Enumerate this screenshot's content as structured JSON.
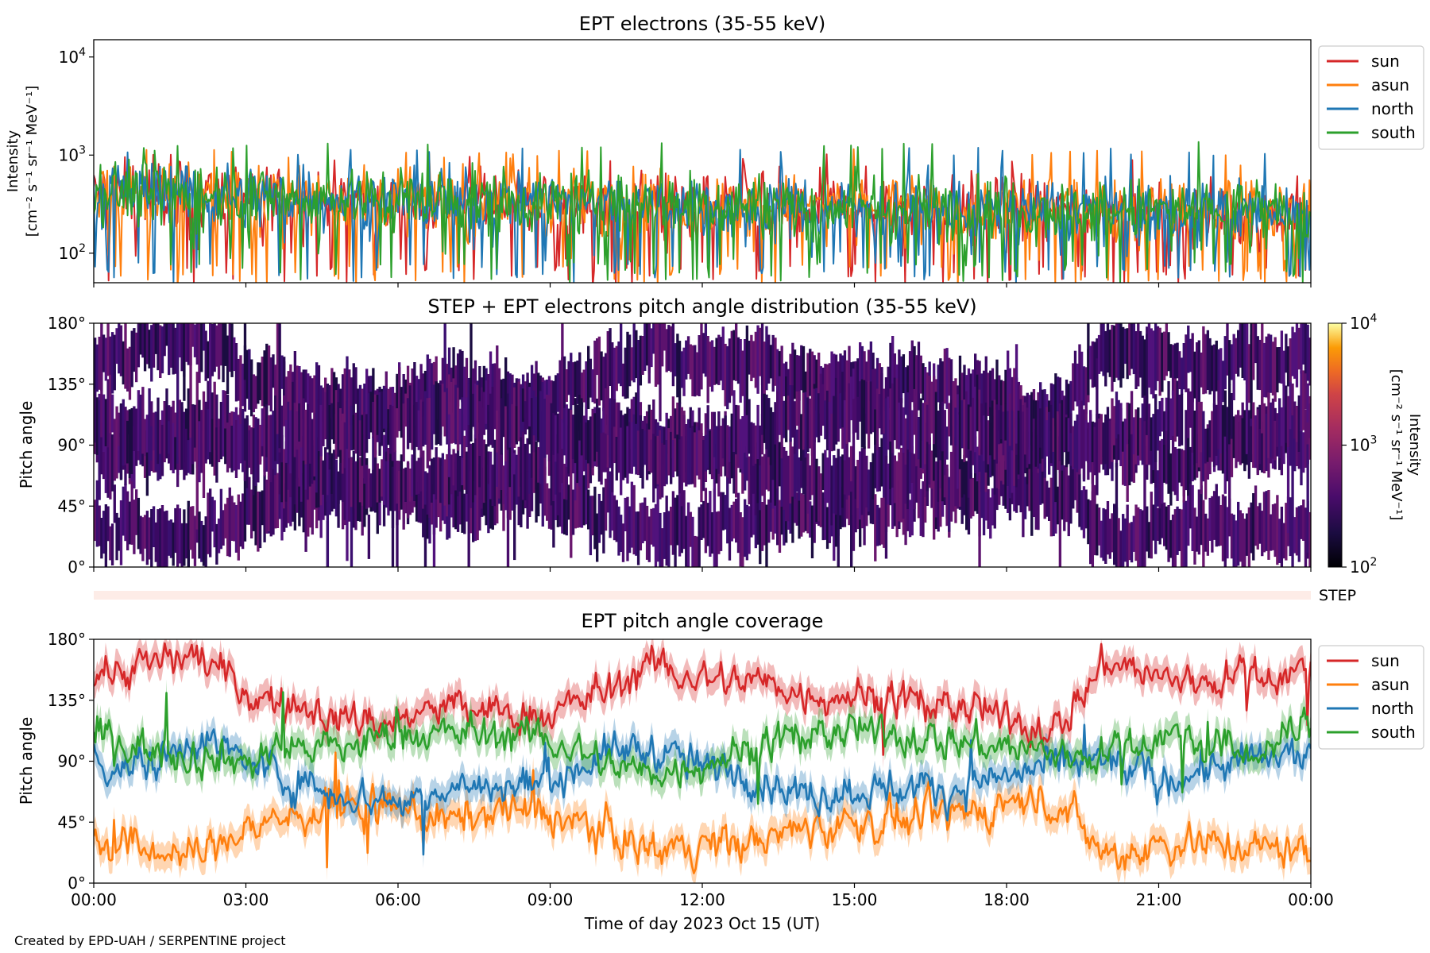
{
  "footer": {
    "credit": "Created by EPD-UAH / SERPENTINE project"
  },
  "chart_data": [
    {
      "type": "line",
      "title": "EPT electrons (35-55 keV)",
      "ylabel_line1": "Intensity",
      "ylabel_line2": "[cm⁻² s⁻¹ sr⁻¹ MeV⁻¹]",
      "yscale": "log",
      "ylim": [
        50,
        15000
      ],
      "yticks": [
        {
          "value": 100,
          "base": "10",
          "exp": "2"
        },
        {
          "value": 1000,
          "base": "10",
          "exp": "3"
        },
        {
          "value": 10000,
          "base": "10",
          "exp": "4"
        }
      ],
      "xlim_hours": [
        0,
        24
      ],
      "legend_position": "right",
      "series": [
        {
          "name": "sun",
          "color": "#d62728",
          "level_by_hour": [
            430,
            400,
            420,
            360,
            380,
            350,
            360,
            330,
            370,
            320,
            330,
            340,
            310,
            320,
            300,
            310,
            290,
            300,
            280,
            270,
            280,
            270,
            260,
            270,
            260
          ],
          "min_spike": 50,
          "max_spike": 1000
        },
        {
          "name": "asun",
          "color": "#ff7f0e",
          "level_by_hour": [
            460,
            440,
            430,
            380,
            390,
            370,
            360,
            350,
            370,
            340,
            330,
            340,
            320,
            310,
            300,
            300,
            300,
            290,
            290,
            280,
            290,
            280,
            270,
            280,
            270
          ],
          "min_spike": 50,
          "max_spike": 1100
        },
        {
          "name": "north",
          "color": "#1f77b4",
          "level_by_hour": [
            450,
            420,
            430,
            370,
            380,
            360,
            350,
            340,
            360,
            330,
            320,
            330,
            310,
            300,
            300,
            300,
            290,
            280,
            280,
            280,
            270,
            270,
            260,
            270,
            260
          ],
          "min_spike": 55,
          "max_spike": 1150
        },
        {
          "name": "south",
          "color": "#2ca02c",
          "level_by_hour": [
            440,
            430,
            420,
            380,
            370,
            360,
            360,
            340,
            350,
            330,
            330,
            330,
            320,
            310,
            310,
            300,
            290,
            290,
            280,
            280,
            280,
            270,
            270,
            270,
            260
          ],
          "min_spike": 55,
          "max_spike": 1300
        }
      ]
    },
    {
      "type": "heatmap",
      "title": "STEP + EPT electrons pitch angle distribution (35-55 keV)",
      "ylabel": "Pitch angle",
      "ylim": [
        0,
        180
      ],
      "yticks": [
        "0°",
        "45°",
        "90°",
        "135°",
        "180°"
      ],
      "xlim_hours": [
        0,
        24
      ],
      "colorbar": {
        "label_line1": "Intensity",
        "label_line2": "[cm⁻² s⁻¹ sr⁻¹ MeV⁻¹]",
        "scale": "log",
        "range": [
          100,
          10000
        ],
        "ticks": [
          {
            "value": 100,
            "base": "10",
            "exp": "2"
          },
          {
            "value": 1000,
            "base": "10",
            "exp": "3"
          },
          {
            "value": 10000,
            "base": "10",
            "exp": "4"
          }
        ],
        "colormap": "inferno"
      },
      "dominant_intensity": 300,
      "description_of_gaps": "uncovered pitch angles shown white"
    },
    {
      "type": "band",
      "label": "STEP",
      "color": "#fdece7",
      "xlim_hours": [
        0,
        24
      ]
    },
    {
      "type": "line",
      "title": "EPT pitch angle coverage",
      "ylabel": "Pitch angle",
      "ylim": [
        0,
        180
      ],
      "yticks": [
        "0°",
        "45°",
        "90°",
        "135°",
        "180°"
      ],
      "xlabel": "Time of day 2023 Oct 15 (UT)",
      "xticks": [
        "00:00",
        "03:00",
        "06:00",
        "09:00",
        "12:00",
        "15:00",
        "18:00",
        "21:00",
        "00:00"
      ],
      "xlim_hours": [
        0,
        24
      ],
      "legend_position": "right",
      "band_halfwidth_deg": 10,
      "hours": [
        0,
        1,
        2,
        3,
        4,
        5,
        6,
        7,
        8,
        9,
        10,
        11,
        12,
        13,
        14,
        15,
        16,
        17,
        18,
        19,
        20,
        21,
        22,
        23,
        24
      ],
      "series": [
        {
          "name": "sun",
          "color": "#d62728",
          "values": [
            155,
            160,
            170,
            140,
            130,
            120,
            120,
            130,
            125,
            125,
            140,
            160,
            150,
            150,
            140,
            140,
            135,
            130,
            120,
            115,
            165,
            150,
            150,
            155,
            155
          ]
        },
        {
          "name": "asun",
          "color": "#ff7f0e",
          "values": [
            30,
            25,
            20,
            40,
            50,
            55,
            55,
            45,
            55,
            50,
            40,
            25,
            30,
            30,
            40,
            45,
            45,
            50,
            60,
            60,
            20,
            30,
            30,
            25,
            25
          ]
        },
        {
          "name": "north",
          "color": "#1f77b4",
          "values": [
            90,
            85,
            110,
            90,
            75,
            65,
            60,
            70,
            70,
            75,
            95,
            100,
            85,
            80,
            65,
            70,
            70,
            70,
            80,
            85,
            90,
            75,
            85,
            90,
            95
          ]
        },
        {
          "name": "south",
          "color": "#2ca02c",
          "values": [
            110,
            100,
            95,
            90,
            100,
            100,
            110,
            110,
            110,
            105,
            90,
            80,
            90,
            100,
            110,
            110,
            110,
            105,
            100,
            95,
            95,
            110,
            100,
            95,
            120
          ]
        }
      ]
    }
  ]
}
